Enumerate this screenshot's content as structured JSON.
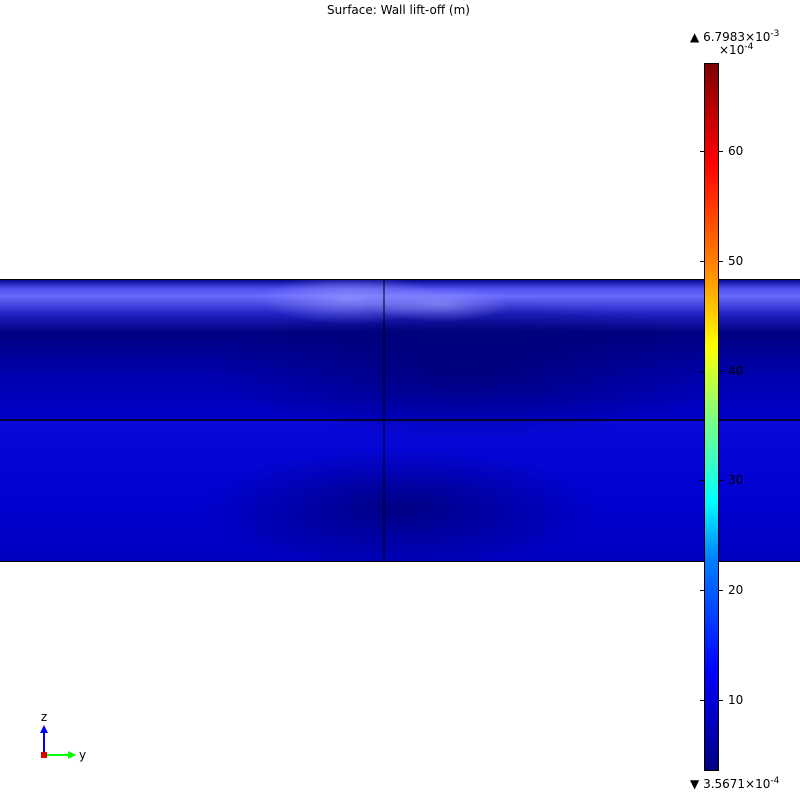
{
  "title": "Surface: Wall lift-off (m)",
  "chart_data": {
    "type": "heatmap",
    "title": "Surface: Wall lift-off (m)",
    "colormap": "rainbow",
    "colorbar": {
      "max_label": "6.7983×10",
      "max_exp": "-3",
      "min_label": "3.5671×10",
      "min_exp": "-4",
      "scale_label": "×10",
      "scale_exp": "-4",
      "ticks": [
        10,
        20,
        30,
        40,
        50,
        60
      ],
      "range": [
        3.5671,
        67.983
      ]
    },
    "axes_triad": {
      "vertical": "z",
      "horizontal": "y"
    },
    "colors": {
      "surface_dark": "#000080",
      "surface_mid": "#0000d0",
      "surface_highlight": "#6a6aff"
    }
  }
}
